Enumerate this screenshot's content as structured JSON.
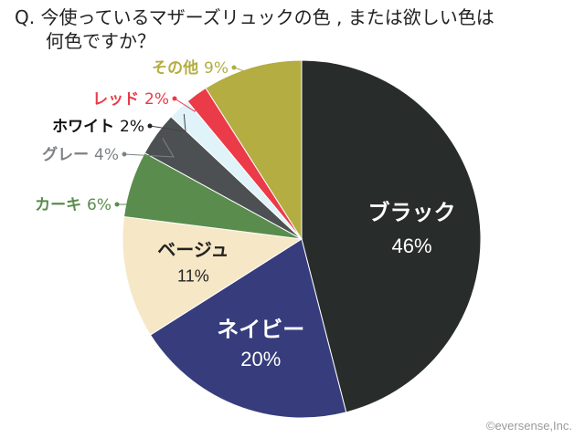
{
  "question": {
    "line1": "Q. 今使っているマザーズリュックの色 , または欲しい色は",
    "line2": "何色ですか？"
  },
  "chart_data": {
    "type": "pie",
    "start_angle_deg": 0,
    "direction": "clockwise",
    "slices": [
      {
        "label": "ブラック",
        "value": 46,
        "value_label": "46%",
        "color": "#282c2b",
        "label_color": "#ffffff",
        "label_mode": "inside"
      },
      {
        "label": "ネイビー",
        "value": 20,
        "value_label": "20%",
        "color": "#363c7c",
        "label_color": "#ffffff",
        "label_mode": "inside"
      },
      {
        "label": "ベージュ",
        "value": 11,
        "value_label": "11%",
        "color": "#f6e7c6",
        "label_color": "#222222",
        "label_mode": "inside"
      },
      {
        "label": "カーキ",
        "value": 6,
        "value_label": "6%",
        "color": "#5a8c4e",
        "label_color": "#5a8c4e",
        "label_mode": "outside"
      },
      {
        "label": "グレー",
        "value": 4,
        "value_label": "4%",
        "color": "#4d5052",
        "label_color": "#7d8184",
        "label_mode": "outside"
      },
      {
        "label": "ホワイト",
        "value": 2,
        "value_label": "2%",
        "color": "#dff3f9",
        "label_color": "#111111",
        "label_mode": "outside"
      },
      {
        "label": "レッド",
        "value": 2,
        "value_label": "2%",
        "color": "#eb3a48",
        "label_color": "#eb3a48",
        "label_mode": "outside"
      },
      {
        "label": "その他",
        "value": 9,
        "value_label": "9%",
        "color": "#b3ad42",
        "label_color": "#b3ad42",
        "label_mode": "outside"
      }
    ]
  },
  "copyright": "©eversense,Inc."
}
